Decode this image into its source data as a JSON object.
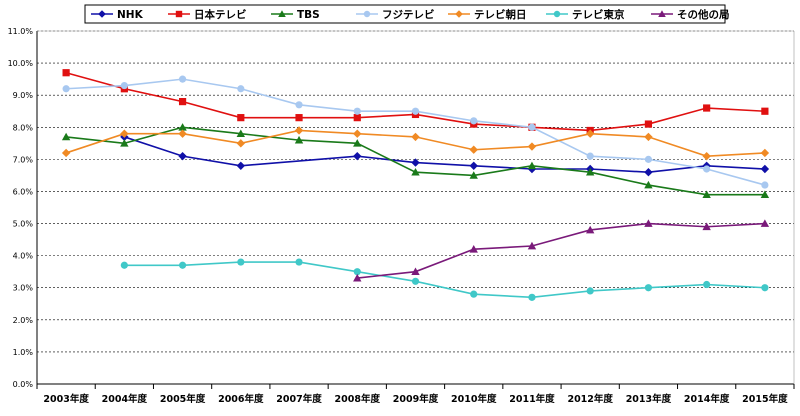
{
  "chart_data": {
    "type": "line",
    "categories": [
      "2003年度",
      "2004年度",
      "2005年度",
      "2006年度",
      "2007年度",
      "2008年度",
      "2009年度",
      "2010年度",
      "2011年度",
      "2012年度",
      "2013年度",
      "2014年度",
      "2015年度"
    ],
    "ylim": [
      0,
      11
    ],
    "ytick_step": 1,
    "ytick_labels": [
      "0.0%",
      "1.0%",
      "2.0%",
      "3.0%",
      "4.0%",
      "5.0%",
      "6.0%",
      "7.0%",
      "8.0%",
      "9.0%",
      "10.0%",
      "11.0%"
    ],
    "grid": true,
    "legend_position": "top",
    "series": [
      {
        "name": "NHK",
        "color": "#1010A8",
        "marker": "diamond",
        "values": [
          null,
          7.7,
          7.1,
          6.8,
          null,
          7.1,
          6.9,
          6.8,
          6.7,
          6.7,
          6.6,
          6.8,
          6.7
        ]
      },
      {
        "name": "日本テレビ",
        "color": "#E01010",
        "marker": "square",
        "values": [
          9.7,
          9.2,
          8.8,
          8.3,
          8.3,
          8.3,
          8.4,
          8.1,
          8.0,
          7.9,
          8.1,
          8.6,
          8.5
        ]
      },
      {
        "name": "TBS",
        "color": "#1A7A1A",
        "marker": "triangle",
        "values": [
          7.7,
          7.5,
          8.0,
          7.8,
          7.6,
          7.5,
          6.6,
          6.5,
          6.8,
          6.6,
          6.2,
          5.9,
          5.9
        ]
      },
      {
        "name": "フジテレビ",
        "color": "#A8C8F0",
        "marker": "circle",
        "values": [
          9.2,
          9.3,
          9.5,
          9.2,
          8.7,
          8.5,
          8.5,
          8.2,
          8.0,
          7.1,
          7.0,
          6.7,
          6.2
        ]
      },
      {
        "name": "テレビ朝日",
        "color": "#F08A24",
        "marker": "diamond",
        "values": [
          7.2,
          7.8,
          7.8,
          7.5,
          7.9,
          7.8,
          7.7,
          7.3,
          7.4,
          7.8,
          7.7,
          7.1,
          7.2
        ]
      },
      {
        "name": "テレビ東京",
        "color": "#40C8C8",
        "marker": "circle",
        "values": [
          null,
          3.7,
          3.7,
          3.8,
          3.8,
          3.5,
          3.2,
          2.8,
          2.7,
          2.9,
          3.0,
          3.1,
          3.0
        ]
      },
      {
        "name": "その他の局",
        "color": "#7A1A7A",
        "marker": "triangle",
        "values": [
          null,
          null,
          null,
          null,
          null,
          3.3,
          3.5,
          4.2,
          4.3,
          4.8,
          5.0,
          4.9,
          5.0
        ]
      }
    ]
  }
}
